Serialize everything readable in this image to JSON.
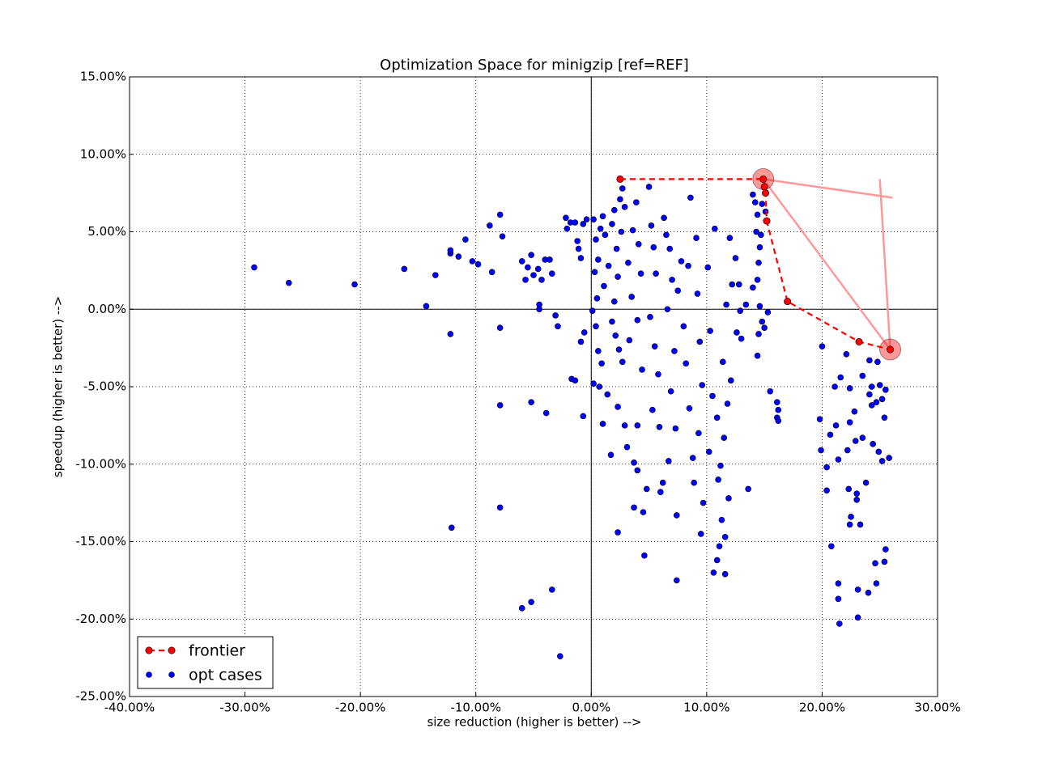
{
  "chart_data": {
    "type": "scatter",
    "title": "Optimization Space for minigzip [ref=REF]",
    "x_label": "size reduction (higher is better) -->",
    "y_label": "speedup (higher is better) -->",
    "xlim": [
      -40,
      30
    ],
    "ylim": [
      -25,
      15
    ],
    "xticks": [
      {
        "value": -40,
        "label": "-40.00%"
      },
      {
        "value": -30,
        "label": "-30.00%"
      },
      {
        "value": -20,
        "label": "-20.00%"
      },
      {
        "value": -10,
        "label": "-10.00%"
      },
      {
        "value": 0,
        "label": "0.00%"
      },
      {
        "value": 10,
        "label": "10.00%"
      },
      {
        "value": 20,
        "label": "20.00%"
      },
      {
        "value": 30,
        "label": "30.00%"
      }
    ],
    "yticks": [
      {
        "value": -25,
        "label": "-25.00%"
      },
      {
        "value": -20,
        "label": "-20.00%"
      },
      {
        "value": -15,
        "label": "-15.00%"
      },
      {
        "value": -10,
        "label": "-10.00%"
      },
      {
        "value": -5,
        "label": "-5.00%"
      },
      {
        "value": 0,
        "label": "0.00%"
      },
      {
        "value": 5,
        "label": "5.00%"
      },
      {
        "value": 10,
        "label": "10.00%"
      },
      {
        "value": 15,
        "label": "15.00%"
      }
    ],
    "grid": true,
    "legend": "lower left",
    "series": [
      {
        "name": "frontier",
        "color": "#ff0000",
        "line": "dashed",
        "x": [
          2.5,
          14.9,
          15.0,
          15.1,
          15.2,
          17.0,
          23.2,
          25.9
        ],
        "values": [
          8.4,
          8.4,
          7.9,
          7.5,
          5.7,
          0.5,
          -2.1,
          -2.6
        ]
      },
      {
        "name": "opt cases",
        "color": "#0000ff",
        "x": [
          -29.2,
          -26.2,
          -20.5,
          -16.2,
          -14.3,
          -13.5,
          -12.2,
          -12.2,
          -11.5,
          -10.9,
          -10.3,
          -9.8,
          -8.8,
          -8.6,
          -7.9,
          -7.7,
          -7.9,
          -12.2,
          -7.9,
          -5.2,
          -3.9,
          -12.1,
          -7.9,
          -3.4,
          -5.2,
          -6.0,
          -2.7,
          -6.0,
          -5.5,
          -5.2,
          -5.0,
          -4.6,
          -4.3,
          -4.0,
          -3.6,
          -3.4,
          -5.7,
          -4.5,
          -4.5,
          -3.1,
          -2.9,
          -2.2,
          -2.1,
          -1.8,
          -1.4,
          -1.2,
          -1.1,
          -0.9,
          -0.7,
          -0.4,
          -0.9,
          -0.6,
          -1.7,
          -1.4,
          -0.7,
          0.2,
          0.4,
          0.6,
          0.3,
          0.8,
          1.0,
          1.2,
          1.1,
          0.5,
          0.1,
          0.4,
          0.6,
          0.9,
          0.2,
          0.7,
          1.0,
          1.4,
          1.5,
          1.8,
          2.0,
          2.2,
          2.5,
          2.7,
          2.9,
          2.6,
          2.3,
          2.0,
          1.8,
          2.1,
          2.4,
          2.7,
          2.3,
          2.9,
          1.7,
          2.3,
          3.1,
          3.3,
          3.5,
          3.2,
          3.6,
          3.9,
          4.1,
          4.3,
          4.0,
          4.4,
          4.0,
          3.7,
          4.0,
          3.7,
          4.5,
          4.6,
          4.8,
          5.0,
          5.2,
          5.4,
          5.6,
          5.1,
          5.5,
          5.8,
          5.3,
          5.9,
          6.2,
          6.0,
          6.3,
          6.5,
          6.8,
          7.0,
          6.6,
          7.2,
          6.9,
          7.3,
          6.7,
          7.4,
          7.4,
          7.5,
          7.8,
          8.0,
          8.2,
          8.4,
          8.6,
          8.5,
          8.8,
          8.9,
          9.1,
          9.2,
          9.4,
          9.6,
          9.3,
          9.7,
          9.5,
          10.1,
          10.3,
          10.5,
          10.2,
          10.7,
          10.9,
          11.0,
          11.3,
          11.1,
          10.6,
          11.6,
          10.9,
          11.5,
          11.8,
          11.4,
          11.9,
          11.6,
          11.2,
          12.1,
          11.7,
          12.2,
          12.0,
          12.5,
          12.8,
          12.6,
          12.9,
          13.4,
          13.0,
          13.6,
          14.0,
          14.2,
          14.4,
          14.3,
          14.6,
          14.8,
          14.5,
          14.4,
          14.0,
          14.6,
          14.8,
          14.5,
          14.4,
          15.0,
          15.3,
          15.5,
          16.1,
          16.2,
          16.1,
          16.2,
          14.7,
          15.1,
          20.0,
          19.8,
          19.9,
          20.4,
          20.4,
          20.7,
          21.1,
          21.2,
          21.4,
          21.6,
          20.8,
          21.4,
          21.4,
          21.5,
          22.1,
          22.4,
          22.4,
          22.2,
          22.3,
          22.5,
          22.4,
          22.8,
          22.9,
          23.0,
          23.0,
          23.1,
          23.1,
          23.3,
          23.5,
          23.5,
          23.8,
          24.0,
          24.1,
          24.1,
          24.3,
          24.4,
          24.6,
          24.7,
          24.8,
          24.9,
          25.0,
          25.2,
          25.4,
          25.4,
          25.5,
          25.2,
          25.8,
          25.5,
          24.7,
          24.3
        ],
        "values": [
          2.7,
          1.7,
          1.6,
          2.6,
          0.2,
          2.2,
          3.6,
          3.8,
          3.4,
          4.5,
          3.1,
          2.9,
          5.4,
          2.4,
          6.1,
          4.7,
          -1.2,
          -1.6,
          -6.2,
          -6.0,
          -6.7,
          -14.1,
          -12.8,
          -18.1,
          -18.9,
          -19.3,
          -22.4,
          3.1,
          2.7,
          3.5,
          2.2,
          2.6,
          1.9,
          3.2,
          3.2,
          2.3,
          1.9,
          0.3,
          0.0,
          -0.4,
          -1.1,
          5.9,
          5.2,
          5.6,
          5.6,
          4.4,
          3.9,
          3.3,
          5.5,
          5.8,
          -2.1,
          -1.5,
          -4.5,
          -4.6,
          -6.9,
          5.8,
          4.5,
          3.2,
          2.4,
          5.2,
          6.0,
          4.8,
          1.5,
          0.7,
          -0.1,
          -1.1,
          -2.7,
          -3.5,
          -4.8,
          -5.0,
          -7.4,
          -5.5,
          2.8,
          5.5,
          6.4,
          3.9,
          7.1,
          7.8,
          6.6,
          5.0,
          2.1,
          0.5,
          -0.8,
          -1.7,
          -2.6,
          -3.4,
          -6.3,
          -7.5,
          -9.4,
          -14.4,
          -8.9,
          -2.0,
          0.8,
          3.0,
          5.1,
          6.9,
          4.2,
          2.3,
          -0.7,
          -3.9,
          -7.5,
          -9.9,
          -10.4,
          -12.8,
          -13.1,
          -15.9,
          -11.6,
          7.9,
          5.4,
          4.0,
          2.3,
          -0.5,
          -2.4,
          -4.2,
          -6.5,
          -7.6,
          -11.2,
          -11.8,
          5.9,
          4.8,
          3.9,
          1.9,
          0.0,
          -2.7,
          -5.3,
          -7.7,
          -9.8,
          -13.3,
          -17.5,
          1.2,
          3.1,
          -1.1,
          -3.5,
          2.8,
          7.2,
          -6.4,
          -9.6,
          -11.2,
          4.6,
          1.0,
          -2.1,
          -4.9,
          -8.0,
          -12.5,
          -14.5,
          2.7,
          -1.4,
          -5.6,
          -9.2,
          5.2,
          -7.0,
          -11.0,
          -13.6,
          -15.3,
          -17.0,
          -17.1,
          -16.2,
          -8.3,
          -6.1,
          -3.4,
          -12.2,
          -14.7,
          -10.1,
          -4.6,
          0.3,
          1.6,
          4.6,
          3.3,
          1.6,
          -1.5,
          -0.1,
          0.3,
          -1.9,
          -11.6,
          7.4,
          6.9,
          6.1,
          5.0,
          4.0,
          6.8,
          3.0,
          1.9,
          1.4,
          0.2,
          -0.8,
          -1.6,
          -3.0,
          -1.2,
          -0.2,
          -5.3,
          -6.0,
          -6.5,
          -7.0,
          -7.2,
          4.8,
          6.3,
          -2.4,
          -7.1,
          -9.1,
          -10.2,
          -11.7,
          -8.1,
          -5.0,
          -7.5,
          -9.7,
          -4.4,
          -15.3,
          -17.7,
          -18.7,
          -20.3,
          -2.9,
          -5.1,
          -7.3,
          -9.1,
          -11.6,
          -13.4,
          -13.9,
          -6.6,
          -8.5,
          -11.9,
          -12.3,
          -18.1,
          -19.9,
          -13.9,
          -4.3,
          -8.3,
          -11.2,
          -18.3,
          -5.5,
          -3.3,
          -6.2,
          -8.7,
          -16.4,
          -17.7,
          -3.4,
          -9.2,
          -4.9,
          -5.8,
          -7.0,
          -16.3,
          -15.5,
          -9.8,
          -9.6,
          -5.2,
          -6.0,
          -5.0
        ]
      }
    ],
    "highlights": {
      "color": "#ff0000",
      "x": [
        14.9,
        25.9
      ],
      "values": [
        8.4,
        -2.6
      ]
    },
    "overlay_line": {
      "color": "#ff9999",
      "x": [
        26.1,
        14.9,
        25.9,
        25.0
      ],
      "values": [
        7.2,
        8.4,
        -2.6,
        8.4
      ]
    }
  }
}
